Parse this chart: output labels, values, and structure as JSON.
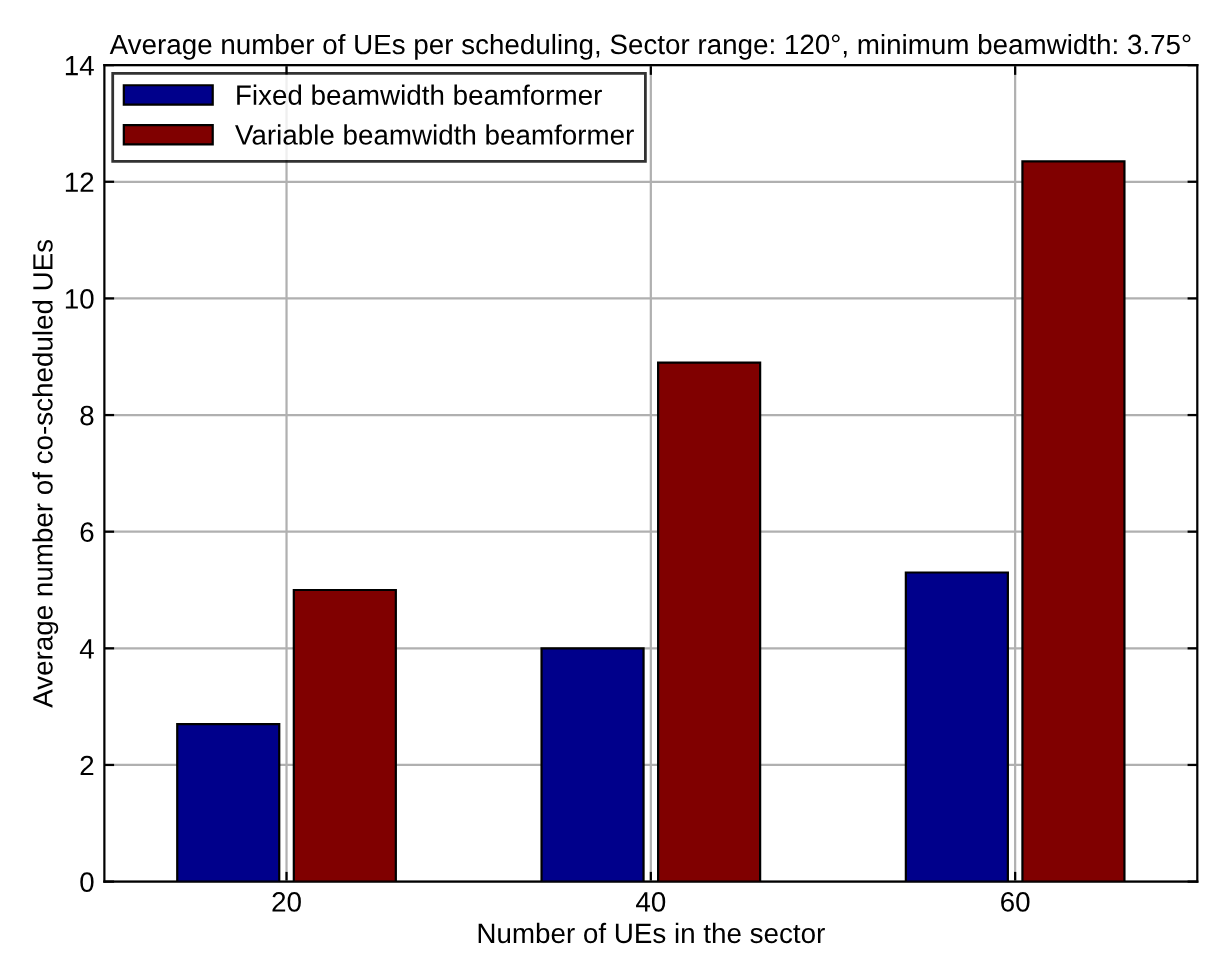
{
  "chart_data": {
    "type": "bar",
    "title": "Average number of UEs per scheduling, Sector range: 120°, minimum beamwidth: 3.75°",
    "xlabel": "Number of UEs in the sector",
    "ylabel": "Average number of co-scheduled UEs",
    "categories": [
      "20",
      "40",
      "60"
    ],
    "series": [
      {
        "name": "Fixed beamwidth beamformer",
        "color": "#00008b",
        "values": [
          2.7,
          4.0,
          5.3
        ]
      },
      {
        "name": "Variable beamwidth beamformer",
        "color": "#800000",
        "values": [
          5.0,
          8.9,
          12.35
        ]
      }
    ],
    "ylim": [
      0,
      14
    ],
    "yticks": [
      0,
      2,
      4,
      6,
      8,
      10,
      12,
      14
    ],
    "grid": true,
    "legend": "top left"
  }
}
